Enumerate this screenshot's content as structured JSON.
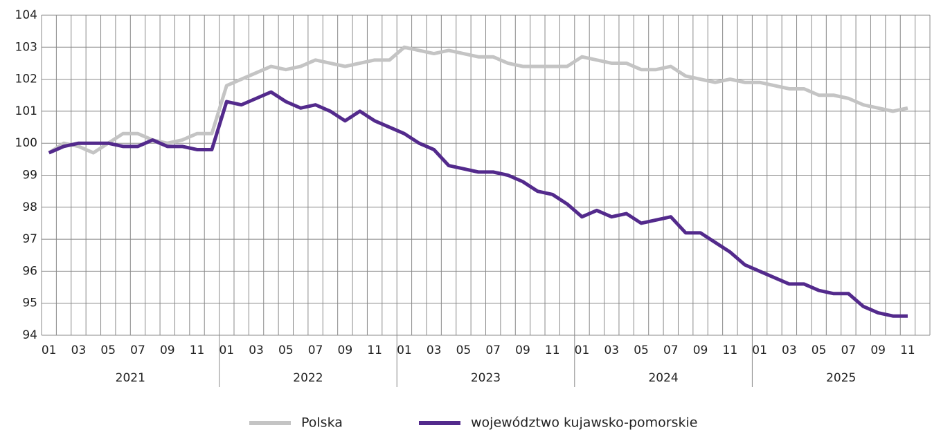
{
  "chart_data": {
    "type": "line",
    "categories": [
      "01",
      null,
      "03",
      null,
      "05",
      null,
      "07",
      null,
      "09",
      null,
      "11",
      null,
      "01",
      null,
      "03",
      null,
      "05",
      null,
      "07",
      null,
      "09",
      null,
      "11",
      null,
      "01",
      null,
      "03",
      null,
      "05",
      null,
      "07",
      null,
      "09",
      null,
      "11",
      null,
      "01",
      null,
      "03",
      null,
      "05",
      null,
      "07",
      null,
      "09",
      null,
      "11",
      null,
      "01",
      null,
      "03",
      null,
      "05",
      null,
      "07",
      null,
      "09",
      null,
      "11"
    ],
    "x_groups": [
      "2021",
      "2022",
      "2023",
      "2024",
      "2025"
    ],
    "series": [
      {
        "name": "Polska",
        "color": "#c4c4c4",
        "values": [
          99.7,
          100.0,
          99.9,
          99.7,
          100.0,
          100.3,
          100.3,
          100.1,
          100.0,
          100.1,
          100.3,
          100.3,
          101.8,
          102.0,
          102.2,
          102.4,
          102.3,
          102.4,
          102.6,
          102.5,
          102.4,
          102.5,
          102.6,
          102.6,
          103.0,
          102.9,
          102.8,
          102.9,
          102.8,
          102.7,
          102.7,
          102.5,
          102.4,
          102.4,
          102.4,
          102.4,
          102.7,
          102.6,
          102.5,
          102.5,
          102.3,
          102.3,
          102.4,
          102.1,
          102.0,
          101.9,
          102.0,
          101.9,
          101.9,
          101.8,
          101.7,
          101.7,
          101.5,
          101.5,
          101.4,
          101.2,
          101.1,
          101.0,
          101.1
        ]
      },
      {
        "name": "województwo kujawsko-pomorskie",
        "color": "#532a8c",
        "values": [
          99.7,
          99.9,
          100.0,
          100.0,
          100.0,
          99.9,
          99.9,
          100.1,
          99.9,
          99.9,
          99.8,
          99.8,
          101.3,
          101.2,
          101.4,
          101.6,
          101.3,
          101.1,
          101.2,
          101.0,
          100.7,
          101.0,
          100.7,
          100.5,
          100.3,
          100.0,
          99.8,
          99.3,
          99.2,
          99.1,
          99.1,
          99.0,
          98.8,
          98.5,
          98.4,
          98.1,
          97.7,
          97.9,
          97.7,
          97.8,
          97.5,
          97.6,
          97.7,
          97.2,
          97.2,
          96.9,
          96.6,
          96.2,
          96.0,
          95.8,
          95.6,
          95.6,
          95.4,
          95.3,
          95.3,
          94.9,
          94.7,
          94.6,
          94.6
        ]
      }
    ],
    "ylim": [
      94,
      104
    ],
    "yticks": [
      94,
      95,
      96,
      97,
      98,
      99,
      100,
      101,
      102,
      103,
      104
    ],
    "grid": true,
    "legend": "bottom"
  }
}
